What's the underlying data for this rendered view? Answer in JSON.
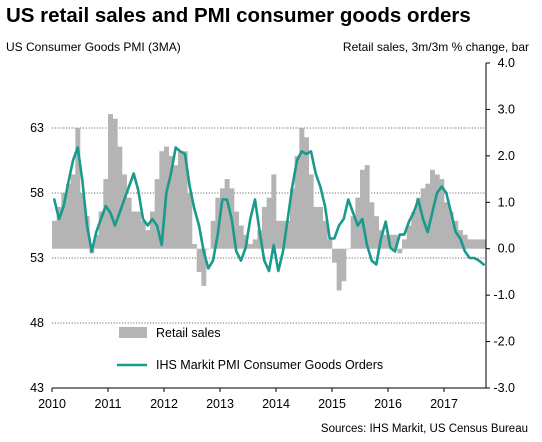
{
  "chart_data": {
    "type": "bar+line",
    "title": "US retail sales and PMI consumer goods orders",
    "left_axis_label": "US Consumer Goods PMI (3MA)",
    "right_axis_label": "Retail sales, 3m/3m % change, bar",
    "source": "Sources: IHS Markit, US Census Bureau",
    "x_tick_labels": [
      "2010",
      "2011",
      "2012",
      "2013",
      "2014",
      "2015",
      "2016",
      "2017"
    ],
    "x_range_years": [
      2010.0,
      2017.75
    ],
    "left_axis": {
      "ylim": [
        43,
        68
      ],
      "ticks": [
        43,
        48,
        53,
        58,
        63
      ],
      "tick_labels": [
        "43",
        "48",
        "53",
        "58",
        "63"
      ]
    },
    "right_axis": {
      "ylim": [
        -3.0,
        4.0
      ],
      "ticks": [
        -3,
        -2,
        -1,
        0,
        1,
        2,
        3,
        4
      ],
      "tick_labels": [
        "-3.0",
        "-2.0",
        "-1.0",
        "0.0",
        "1.0",
        "2.0",
        "3.0",
        "4.0"
      ]
    },
    "gridlines_left": [
      48,
      53,
      58,
      63
    ],
    "legend": {
      "placement": "bottom-left",
      "items": [
        "Retail sales",
        "IHS Markit PMI Consumer Goods Orders"
      ]
    },
    "series": [
      {
        "name": "Retail sales",
        "kind": "bar",
        "axis": "right",
        "color": "#b4b4b4",
        "start": "2010-01",
        "values": [
          0.6,
          0.9,
          1.2,
          1.4,
          1.6,
          2.6,
          1.2,
          0.7,
          -0.1,
          0.3,
          0.8,
          1.5,
          2.9,
          2.8,
          2.2,
          1.6,
          1.1,
          0.8,
          0.8,
          0.6,
          0.4,
          0.8,
          1.5,
          2.1,
          2.2,
          2.0,
          1.8,
          2.1,
          2.1,
          1.2,
          0.1,
          -0.5,
          -0.8,
          0.0,
          0.6,
          1.1,
          1.3,
          1.5,
          1.3,
          0.8,
          0.5,
          0.3,
          0.1,
          0.2,
          0.4,
          0.9,
          1.1,
          1.6,
          0.6,
          0.6,
          0.6,
          1.3,
          2.0,
          2.6,
          2.4,
          1.6,
          0.9,
          0.9,
          0.6,
          0.2,
          -0.3,
          -0.9,
          -0.7,
          0.0,
          0.7,
          1.1,
          1.7,
          1.8,
          1.0,
          0.7,
          0.4,
          0.3,
          0.3,
          0.3,
          -0.1,
          0.2,
          0.5,
          0.8,
          1.1,
          1.3,
          1.4,
          1.7,
          1.6,
          1.5,
          1.0,
          0.8,
          0.6,
          0.4,
          0.3,
          0.2,
          0.2,
          0.2,
          0.2
        ]
      },
      {
        "name": "IHS Markit PMI Consumer Goods Orders",
        "kind": "line",
        "axis": "left",
        "color": "#1a9a8c",
        "start": "2010-01",
        "values": [
          57.5,
          56.0,
          57.0,
          58.8,
          60.5,
          61.5,
          59.0,
          55.5,
          53.5,
          55.0,
          56.0,
          57.0,
          56.5,
          55.5,
          56.5,
          57.5,
          58.5,
          59.5,
          58.2,
          56.0,
          55.5,
          56.0,
          55.5,
          54.0,
          58.0,
          59.5,
          61.5,
          61.2,
          61.0,
          58.5,
          56.8,
          55.5,
          53.5,
          52.2,
          52.8,
          54.8,
          57.5,
          57.5,
          56.0,
          53.5,
          52.8,
          53.8,
          56.0,
          57.5,
          55.0,
          52.8,
          52.0,
          54.0,
          52.0,
          53.5,
          56.0,
          58.5,
          60.5,
          61.2,
          61.0,
          61.2,
          59.5,
          58.5,
          57.0,
          54.5,
          54.5,
          55.5,
          56.0,
          57.5,
          56.5,
          55.5,
          56.0,
          54.0,
          52.8,
          52.5,
          54.5,
          55.8,
          53.8,
          53.5,
          54.8,
          54.8,
          55.8,
          56.5,
          57.5,
          56.0,
          55.0,
          56.5,
          58.0,
          58.5,
          58.0,
          56.5,
          55.0,
          54.5,
          53.5,
          53.0,
          53.0,
          52.8,
          52.5
        ]
      }
    ]
  }
}
